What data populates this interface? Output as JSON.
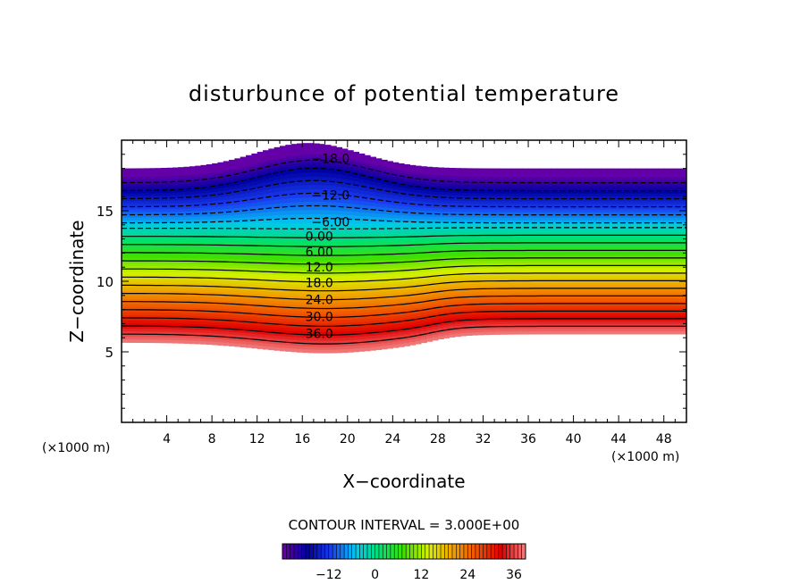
{
  "chart_data": {
    "type": "heatmap",
    "title": "disturbunce of potential temperature",
    "xlabel": "X−coordinate",
    "ylabel": "Z−coordinate",
    "x_unit_left": "(×1000 m)",
    "x_unit_right": "(×1000 m)",
    "xlim": [
      0,
      50
    ],
    "ylim": [
      0,
      20
    ],
    "x_ticks": [
      "4",
      "8",
      "12",
      "16",
      "20",
      "24",
      "28",
      "32",
      "36",
      "40",
      "44",
      "48"
    ],
    "y_ticks": [
      "5",
      "10",
      "15"
    ],
    "contour_interval_text": "CONTOUR INTERVAL = 3.000E+00",
    "contour_interval": 3.0,
    "contour_labels": [
      {
        "text": "−18.0",
        "value": -18,
        "x": 18.5,
        "y": 18.7
      },
      {
        "text": "−12.0",
        "value": -12,
        "x": 18.5,
        "y": 16.1
      },
      {
        "text": "−6.00",
        "value": -6,
        "x": 18.5,
        "y": 14.2
      },
      {
        "text": "0.00",
        "value": 0,
        "x": 17.5,
        "y": 13.2
      },
      {
        "text": "6.00",
        "value": 6,
        "x": 17.5,
        "y": 12.1
      },
      {
        "text": "12.0",
        "value": 12,
        "x": 17.5,
        "y": 11.0
      },
      {
        "text": "18.0",
        "value": 18,
        "x": 17.5,
        "y": 9.9
      },
      {
        "text": "24.0",
        "value": 24,
        "x": 17.5,
        "y": 8.7
      },
      {
        "text": "30.0",
        "value": 30,
        "x": 17.5,
        "y": 7.5
      },
      {
        "text": "36.0",
        "value": 36,
        "x": 17.5,
        "y": 6.3
      }
    ],
    "value_range": [
      -24,
      39
    ],
    "field_top_z_flat": 18.0,
    "field_top_z_peak": 19.8,
    "field_bottom_z_min": 5.9,
    "field_bottom_z_flat": 6.7,
    "colorbar": {
      "ticks": [
        {
          "value": -12,
          "label": "−12"
        },
        {
          "value": 0,
          "label": "0"
        },
        {
          "value": 12,
          "label": "12"
        },
        {
          "value": 24,
          "label": "24"
        },
        {
          "value": 36,
          "label": "36"
        }
      ],
      "range": [
        -24,
        39
      ]
    },
    "colormap": [
      "#6b00a8",
      "#0000a0",
      "#1a3cf0",
      "#00c8f0",
      "#00e070",
      "#40e000",
      "#d8f000",
      "#f0a000",
      "#f05000",
      "#e00000",
      "#f08080"
    ],
    "grid": false
  }
}
